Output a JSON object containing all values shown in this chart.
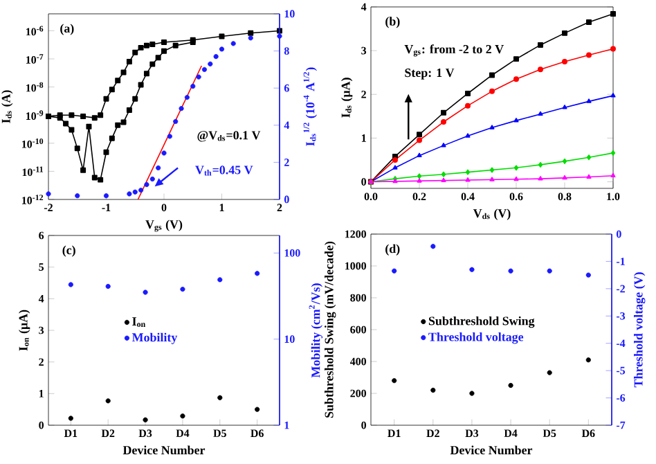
{
  "chart_data": [
    {
      "type": "line",
      "annotations": [
        "(a)",
        "@V$_{ds}$=0.1 V",
        "V$_{th}$=0.45 V"
      ],
      "xlabel": "V$_{gs}$ (V)",
      "ylabel": "I$_{ds}$ (A)",
      "y2label": "I$_{ds}$$^{1/2}$ (10$^{-4}$ A$^{1/2}$)",
      "log": "y",
      "xlim": [
        -2,
        2
      ],
      "xticks": [
        -2,
        -1,
        0,
        1,
        2
      ],
      "ylim": [
        1e-12,
        4e-06
      ],
      "yticks": [
        {
          "value": 1e-12,
          "label": "10$^{-12}$"
        },
        {
          "value": 1e-11,
          "label": "10$^{-11}$"
        },
        {
          "value": 1e-10,
          "label": "10$^{-10}$"
        },
        {
          "value": 1e-09,
          "label": "10$^{-9}$"
        },
        {
          "value": 1e-08,
          "label": "10$^{-8}$"
        },
        {
          "value": 1e-07,
          "label": "10$^{-7}$"
        },
        {
          "value": 1e-06,
          "label": "10$^{-6}$"
        }
      ],
      "y2lim": [
        0,
        10
      ],
      "y2ticks": [
        0,
        2,
        4,
        6,
        8,
        10
      ],
      "series": [
        {
          "type": "line",
          "marker": "square",
          "color": "#000000",
          "x": [
            -2,
            -1.8,
            -1.6,
            -1.4,
            -1.2,
            -1.1,
            -1.0,
            -0.9,
            -0.8,
            -0.7,
            -0.6,
            -0.5,
            -0.4,
            -0.3,
            -0.2,
            0,
            0.5,
            1,
            1.5,
            2
          ],
          "values": [
            9e-10,
            1e-09,
            1e-09,
            9e-10,
            8e-10,
            1e-09,
            3.8e-09,
            8.1e-09,
            1.7e-08,
            3.3e-08,
            8e-08,
            1.7e-07,
            2.5e-07,
            3e-07,
            3.3e-07,
            3.9e-07,
            4.7e-07,
            6.3e-07,
            8.3e-07,
            1e-06
          ]
        },
        {
          "type": "line",
          "marker": "square",
          "color": "#000000",
          "x": [
            -2,
            -1.8,
            -1.7,
            -1.6,
            -1.5,
            -1.4,
            -1.3,
            -1.2,
            -1.1,
            -1.0,
            -0.9,
            -0.8,
            -0.7,
            -0.6,
            -0.5,
            -0.4,
            -0.3,
            -0.2,
            -0.1,
            0,
            0.2,
            0.5
          ],
          "values": [
            9e-10,
            8e-10,
            5e-10,
            3e-10,
            6.6e-11,
            1.1e-11,
            3.9e-10,
            6e-12,
            5e-12,
            4.8e-11,
            1.5e-10,
            4.4e-10,
            5.6e-10,
            1.5e-09,
            3.8e-09,
            1.2e-08,
            3e-08,
            6.5e-08,
            1.1e-07,
            1.9e-07,
            3e-07,
            3.9e-07
          ]
        },
        {
          "type": "scatter",
          "marker": "circle",
          "axis": "y2",
          "color": "#1a1aff",
          "x": [
            -2,
            -1.5,
            -1.0,
            -0.6,
            -0.5,
            -0.4,
            -0.3,
            -0.2,
            -0.1,
            0,
            0.1,
            0.2,
            0.3,
            0.4,
            0.5,
            0.6,
            0.7,
            0.8,
            0.9,
            1.0,
            1.2,
            1.5,
            2
          ],
          "values": [
            0.3,
            0.2,
            0.2,
            0.3,
            0.4,
            0.5,
            0.8,
            1.1,
            1.7,
            2.5,
            3.4,
            4.2,
            4.9,
            5.5,
            6.1,
            6.6,
            7.0,
            7.3,
            7.7,
            8.1,
            8.4,
            8.7,
            8.8
          ]
        },
        {
          "type": "line",
          "marker": "none",
          "axis": "y2",
          "color": "#ff0000",
          "x": [
            -0.45,
            0.65
          ],
          "values": [
            0,
            7.2
          ]
        }
      ]
    },
    {
      "type": "line",
      "annotations": [
        "(b)",
        "V$_{gs}$: from -2 to 2 V",
        "Step: 1 V"
      ],
      "xlabel": "V$_{ds}$ (V)",
      "ylabel": "I$_{ds}$ (μA)",
      "x": [
        0,
        0.1,
        0.2,
        0.3,
        0.4,
        0.5,
        0.6,
        0.7,
        0.8,
        0.9,
        1.0
      ],
      "xlim": [
        0,
        1
      ],
      "xticks": [
        {
          "value": 0,
          "label": "0.0"
        },
        {
          "value": 0.2,
          "label": "0.2"
        },
        {
          "value": 0.4,
          "label": "0.4"
        },
        {
          "value": 0.6,
          "label": "0.6"
        },
        {
          "value": 0.8,
          "label": "0.8"
        },
        {
          "value": 1,
          "label": "1.0"
        }
      ],
      "ylim": [
        -0.15,
        4
      ],
      "yticks": [
        0,
        1,
        2,
        3,
        4
      ],
      "series": [
        {
          "marker": "square",
          "color": "#000000",
          "values": [
            0,
            0.58,
            1.08,
            1.58,
            2.02,
            2.44,
            2.81,
            3.13,
            3.4,
            3.65,
            3.84
          ]
        },
        {
          "marker": "circle",
          "color": "#ff0000",
          "values": [
            0,
            0.5,
            0.95,
            1.37,
            1.74,
            2.07,
            2.35,
            2.57,
            2.75,
            2.9,
            3.04
          ]
        },
        {
          "marker": "triangle",
          "color": "#0000ff",
          "values": [
            0,
            0.32,
            0.6,
            0.83,
            1.05,
            1.24,
            1.4,
            1.55,
            1.7,
            1.84,
            1.97
          ]
        },
        {
          "marker": "diamond",
          "color": "#00dd00",
          "values": [
            0,
            0.07,
            0.13,
            0.17,
            0.22,
            0.27,
            0.32,
            0.39,
            0.47,
            0.56,
            0.66
          ]
        },
        {
          "marker": "triangle",
          "color": "#ff00ff",
          "values": [
            0,
            0.01,
            0.02,
            0.03,
            0.04,
            0.05,
            0.06,
            0.07,
            0.09,
            0.11,
            0.14
          ]
        }
      ]
    },
    {
      "type": "scatter",
      "annotations": [
        "(c)"
      ],
      "xlabel": "Device Number",
      "ylabel": "I$_{on}$ (μA)",
      "y2label": "Mobility (cm$^{2}$/Vs)",
      "log": "y2",
      "legend": "center",
      "categories": [
        "D1",
        "D2",
        "D3",
        "D4",
        "D5",
        "D6"
      ],
      "ylim": [
        0,
        6
      ],
      "yticks": [
        0,
        1,
        2,
        3,
        4,
        5,
        6
      ],
      "y2lim": [
        1,
        160
      ],
      "y2ticks": [
        1,
        10,
        100
      ],
      "series": [
        {
          "name": "I$_{on}$",
          "marker": "circle",
          "color": "#000000",
          "values": [
            0.22,
            0.77,
            0.17,
            0.29,
            0.87,
            0.5
          ]
        },
        {
          "name": "Mobility",
          "marker": "circle",
          "axis": "y2",
          "color": "#1a1aff",
          "values": [
            43,
            41,
            35,
            38,
            49,
            58
          ]
        }
      ]
    },
    {
      "type": "scatter",
      "annotations": [
        "(d)"
      ],
      "xlabel": "Device Number",
      "ylabel": "Subthreshold Swing (mV/decade)",
      "y2label": "Threshold voltage (V)",
      "legend": "center",
      "categories": [
        "D1",
        "D2",
        "D3",
        "D4",
        "D5",
        "D6"
      ],
      "ylim": [
        0,
        1200
      ],
      "yticks": [
        0,
        200,
        400,
        600,
        800,
        1000,
        1200
      ],
      "y2lim": [
        -7,
        0
      ],
      "y2ticks": [
        -7,
        -6,
        -5,
        -4,
        -3,
        -2,
        -1,
        0
      ],
      "series": [
        {
          "name": "Subthreshold Swing",
          "marker": "circle",
          "color": "#000000",
          "values": [
            280,
            220,
            200,
            250,
            330,
            410
          ]
        },
        {
          "name": "Threshold voltage",
          "marker": "circle",
          "axis": "y2",
          "color": "#1a1aff",
          "values": [
            -1.35,
            -0.45,
            -1.3,
            -1.35,
            -1.35,
            -1.5
          ]
        }
      ]
    }
  ]
}
